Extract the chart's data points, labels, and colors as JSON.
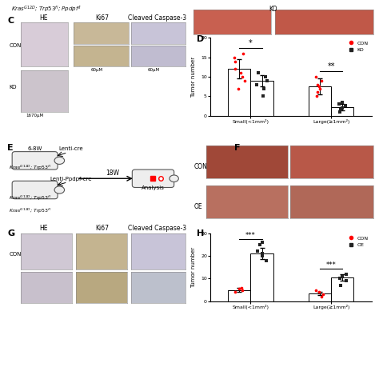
{
  "bg_color": "#ffffff",
  "header_text": "$Kras^{G12D}$; $Trp53^{fl}$; $Ppdpf^{fl}$",
  "panel_D": {
    "categories": [
      "Small(<1mm²)",
      "Large(≥1mm²)"
    ],
    "CON_bars": [
      12.0,
      7.5
    ],
    "KO_bars": [
      9.0,
      2.2
    ],
    "CON_small_dots": [
      7,
      9,
      10,
      11,
      12,
      14,
      15,
      16
    ],
    "KO_small_dots": [
      5,
      7,
      8,
      9,
      10,
      11,
      11
    ],
    "CON_large_dots": [
      5,
      6,
      7,
      7.5,
      8,
      9,
      10
    ],
    "KO_large_dots": [
      1,
      1.5,
      2,
      2.5,
      3,
      3.5
    ],
    "CON_err": [
      2.5,
      2.0
    ],
    "KO_err": [
      1.5,
      0.8
    ],
    "ylabel": "Tumor number",
    "ylim": [
      0,
      20
    ],
    "yticks": [
      0,
      5,
      10,
      15,
      20
    ],
    "sig_small": "*",
    "sig_large": "**"
  },
  "panel_H": {
    "categories": [
      "Small(<1mm²)",
      "Large(≥1mm²)"
    ],
    "CON_bars": [
      5.0,
      3.5
    ],
    "OE_bars": [
      21.0,
      10.5
    ],
    "CON_small_dots": [
      4,
      5,
      5.5,
      6
    ],
    "OE_small_dots": [
      18,
      20,
      21,
      22,
      25,
      26
    ],
    "CON_large_dots": [
      2,
      3,
      4,
      5
    ],
    "OE_large_dots": [
      7,
      9,
      10,
      11,
      12
    ],
    "CON_err": [
      0.8,
      0.8
    ],
    "OE_err": [
      2.5,
      1.5
    ],
    "ylabel": "Tumor number",
    "ylim": [
      0,
      30
    ],
    "yticks": [
      0,
      10,
      20,
      30
    ],
    "sig_small": "***",
    "sig_large": "***"
  },
  "histology_colors": {
    "HE_con_c": "#d8ccd8",
    "HE_ko_c": "#ccc4cc",
    "Ki67_con_c": "#c8b898",
    "Ki67_ko_c": "#c4b490",
    "CC3_con_c": "#c8c4d8",
    "CC3_ko_c": "#c0bcd0",
    "HE_g_con": "#d0c8d4",
    "Ki67_g_con": "#c4b490",
    "CC3_g_con": "#c8c4d8",
    "HE_g_oe": "#c8c0cc",
    "Ki67_g_oe": "#b8a880",
    "CC3_g_oe": "#bcc0cc"
  },
  "lung_colors": {
    "KO1": "#c86050",
    "KO2": "#c05848",
    "CON1": "#a04838",
    "CON2": "#b85848",
    "OE1": "#b87060",
    "OE2": "#b06858"
  },
  "dot_red": "#ff0000",
  "dot_black": "#222222",
  "bar_edge": "#000000",
  "bar_face": "#ffffff"
}
